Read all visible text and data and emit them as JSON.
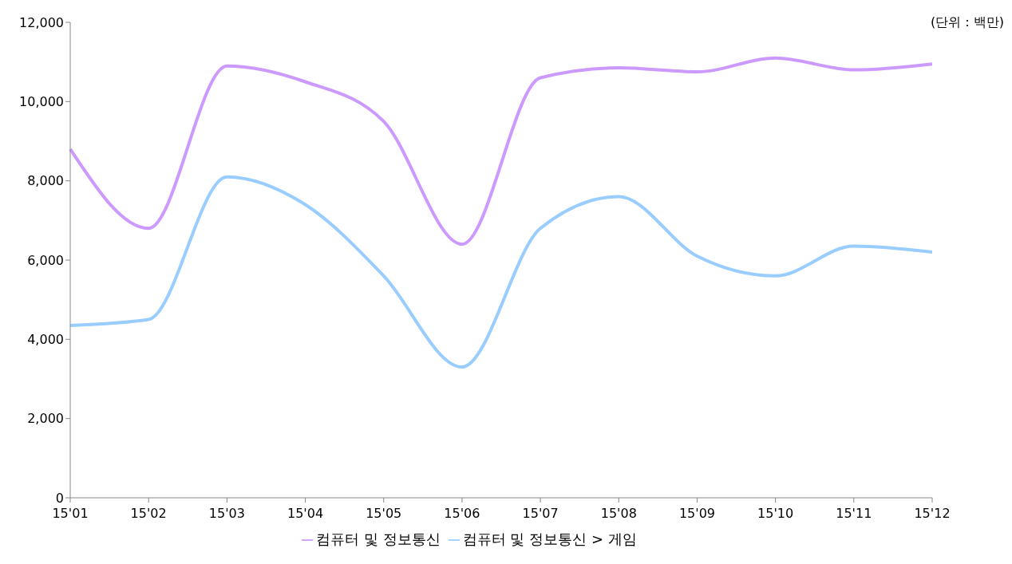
{
  "chart_data": {
    "type": "line",
    "categories": [
      "15'01",
      "15'02",
      "15'03",
      "15'04",
      "15'05",
      "15'06",
      "15'07",
      "15'08",
      "15'09",
      "15'10",
      "15'11",
      "15'12"
    ],
    "series": [
      {
        "name": "컴퓨터 및 정보통신 > 게임",
        "color": "#99ccff",
        "values": [
          4350,
          4500,
          8100,
          7400,
          5600,
          3300,
          6800,
          7600,
          6100,
          5600,
          6350,
          6200
        ]
      },
      {
        "name": "컴퓨터 및 정보통신",
        "color": "#cc99ff",
        "values": [
          8800,
          6800,
          10900,
          10500,
          9500,
          6400,
          10600,
          10850,
          10750,
          11100,
          10800,
          10950
        ]
      }
    ],
    "ylim": [
      0,
      12000
    ],
    "yticks": [
      {
        "value": 0,
        "label": "0"
      },
      {
        "value": 2000,
        "label": "2,000"
      },
      {
        "value": 4000,
        "label": "4,000"
      },
      {
        "value": 6000,
        "label": "6,000"
      },
      {
        "value": 8000,
        "label": "8,000"
      },
      {
        "value": 10000,
        "label": "10,000"
      },
      {
        "value": 12000,
        "label": "12,000"
      }
    ],
    "grid": false,
    "legend": "bottom",
    "marker": "none",
    "line_style": "solid",
    "annotations": [
      "(단위 : 백만)"
    ]
  }
}
